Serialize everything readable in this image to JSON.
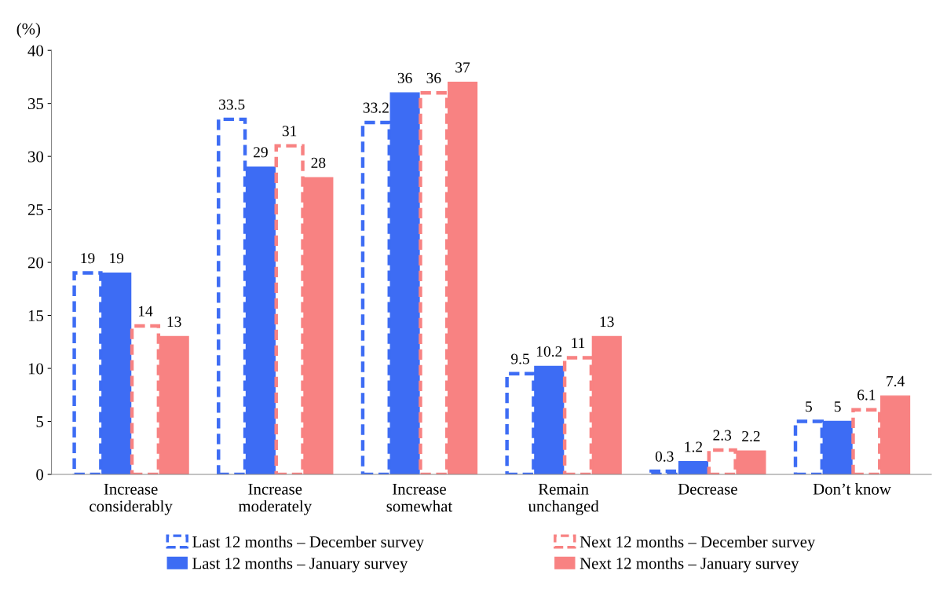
{
  "chart_data": {
    "type": "bar",
    "ylabel": "(%)",
    "categories": [
      "Increase\nconsiderably",
      "Increase\nmoderately",
      "Increase\nsomewhat",
      "Remain\nunchanged",
      "Decrease",
      "Don’t know"
    ],
    "series": [
      {
        "name": "Last 12 months – December survey",
        "color": "#3d6cf4",
        "line_style": "dashed",
        "values": [
          19,
          33.5,
          33.2,
          9.5,
          0.3,
          5
        ]
      },
      {
        "name": "Last 12 months – January survey",
        "color": "#3d6cf4",
        "line_style": "solid",
        "values": [
          19,
          29,
          36,
          10.2,
          1.2,
          5
        ]
      },
      {
        "name": "Next 12 months – December survey",
        "color": "#f88282",
        "line_style": "dashed",
        "values": [
          14,
          31,
          36,
          11,
          2.3,
          6.1
        ]
      },
      {
        "name": "Next 12 months – January survey",
        "color": "#f88282",
        "line_style": "solid",
        "values": [
          13,
          28,
          37,
          13,
          2.2,
          7.4
        ]
      }
    ],
    "ylim": [
      0,
      40
    ],
    "yticks": [
      0,
      5,
      10,
      15,
      20,
      25,
      30,
      35,
      40
    ],
    "data_labels": true,
    "grid": false,
    "legend": "bottom"
  }
}
